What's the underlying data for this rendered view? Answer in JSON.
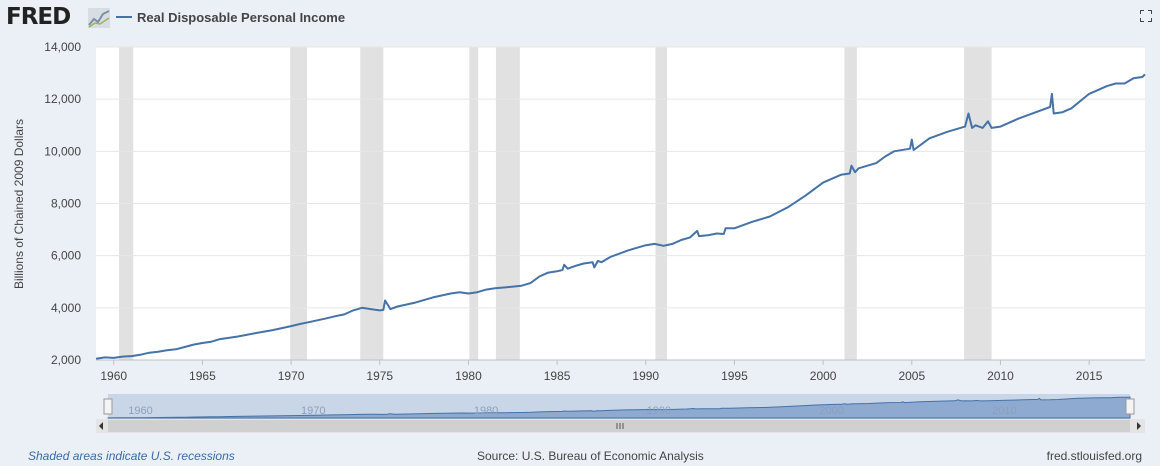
{
  "header": {
    "logo_text": "FRED",
    "logo_icon": "chart-line-icon",
    "fullscreen_icon": "fullscreen-icon"
  },
  "colors": {
    "line": "#4572a7",
    "recession": "#e1e1e1",
    "plot_bg": "#ffffff",
    "page_bg": "#eaf0f6"
  },
  "chart_data": {
    "type": "line",
    "title": "",
    "xlabel": "",
    "ylabel": "Billions of Chained 2009 Dollars",
    "xlim": [
      1959.0,
      2018.15
    ],
    "ylim": [
      2000,
      14000
    ],
    "xticks": [
      1960,
      1965,
      1970,
      1975,
      1980,
      1985,
      1990,
      1995,
      2000,
      2005,
      2010,
      2015
    ],
    "yticks": [
      2000,
      4000,
      6000,
      8000,
      10000,
      12000,
      14000
    ],
    "ytick_labels": [
      "2,000",
      "4,000",
      "6,000",
      "8,000",
      "10,000",
      "12,000",
      "14,000"
    ],
    "grid": true,
    "legend": "top-left",
    "series": [
      {
        "name": "Real Disposable Personal Income",
        "x": [
          1959.0,
          1959.5,
          1960.0,
          1960.5,
          1961.0,
          1961.5,
          1962.0,
          1962.5,
          1963.0,
          1963.5,
          1964.0,
          1964.5,
          1965.0,
          1965.5,
          1966.0,
          1967.0,
          1968.0,
          1969.0,
          1970.0,
          1970.5,
          1971.0,
          1972.0,
          1972.5,
          1973.0,
          1973.5,
          1974.0,
          1974.5,
          1975.0,
          1975.2,
          1975.3,
          1975.6,
          1976.0,
          1977.0,
          1978.0,
          1979.0,
          1979.5,
          1980.0,
          1980.5,
          1981.0,
          1981.5,
          1982.0,
          1983.0,
          1983.5,
          1984.0,
          1984.5,
          1985.0,
          1985.3,
          1985.4,
          1985.6,
          1986.0,
          1986.5,
          1987.0,
          1987.1,
          1987.3,
          1987.5,
          1988.0,
          1989.0,
          1990.0,
          1990.5,
          1991.0,
          1991.5,
          1992.0,
          1992.5,
          1992.9,
          1993.0,
          1993.5,
          1994.0,
          1994.4,
          1994.5,
          1995.0,
          1996.0,
          1997.0,
          1998.0,
          1999.0,
          2000.0,
          2001.0,
          2001.5,
          2001.6,
          2001.8,
          2002.0,
          2003.0,
          2003.5,
          2004.0,
          2004.9,
          2005.0,
          2005.1,
          2005.5,
          2006.0,
          2007.0,
          2008.0,
          2008.2,
          2008.4,
          2008.6,
          2009.0,
          2009.3,
          2009.5,
          2010.0,
          2011.0,
          2012.0,
          2012.8,
          2012.9,
          2013.0,
          2013.5,
          2014.0,
          2015.0,
          2016.0,
          2016.5,
          2017.0,
          2017.5,
          2018.0,
          2018.15
        ],
        "values": [
          2050,
          2100,
          2080,
          2130,
          2150,
          2200,
          2280,
          2320,
          2370,
          2410,
          2500,
          2590,
          2650,
          2700,
          2800,
          2900,
          3030,
          3150,
          3300,
          3380,
          3450,
          3600,
          3680,
          3750,
          3900,
          4000,
          3950,
          3900,
          3920,
          4280,
          3950,
          4050,
          4200,
          4400,
          4550,
          4600,
          4550,
          4600,
          4700,
          4750,
          4780,
          4850,
          4950,
          5200,
          5350,
          5400,
          5450,
          5650,
          5500,
          5600,
          5700,
          5750,
          5550,
          5800,
          5750,
          5950,
          6200,
          6400,
          6450,
          6380,
          6450,
          6600,
          6700,
          6950,
          6750,
          6780,
          6850,
          6830,
          7050,
          7050,
          7300,
          7500,
          7850,
          8300,
          8800,
          9100,
          9150,
          9450,
          9200,
          9350,
          9550,
          9800,
          10000,
          10100,
          10450,
          10050,
          10250,
          10500,
          10750,
          10950,
          11450,
          10900,
          11000,
          10900,
          11150,
          10900,
          10950,
          11250,
          11500,
          11700,
          12200,
          11450,
          11500,
          11650,
          12200,
          12500,
          12600,
          12600,
          12800,
          12850,
          12950
        ]
      }
    ],
    "recessions": [
      [
        1960.3,
        1961.1
      ],
      [
        1969.95,
        1970.9
      ],
      [
        1973.9,
        1975.2
      ],
      [
        1980.05,
        1980.55
      ],
      [
        1981.55,
        1982.9
      ],
      [
        1990.55,
        1991.2
      ],
      [
        2001.2,
        2001.9
      ],
      [
        2007.95,
        2009.5
      ]
    ]
  },
  "navigator": {
    "labels": [
      "1960",
      "1970",
      "1980",
      "1990",
      "2000",
      "2010"
    ],
    "scroll_left_icon": "arrow-left-icon",
    "scroll_right_icon": "arrow-right-icon",
    "grip_icon": "grip-icon"
  },
  "footer": {
    "recession_note": "Shaded areas indicate U.S. recessions",
    "source": "Source: U.S. Bureau of Economic Analysis",
    "site": "fred.stlouisfed.org"
  }
}
